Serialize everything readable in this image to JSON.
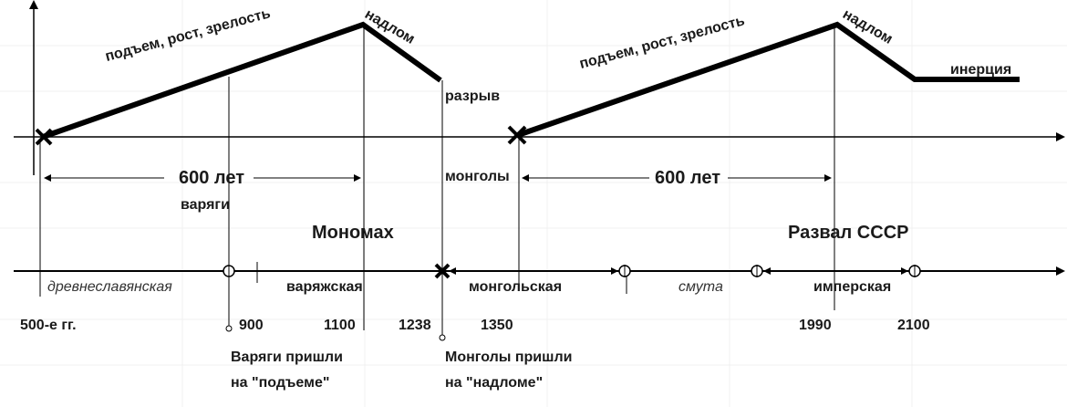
{
  "labels": {
    "phase1_rise": "подъем, рост, зрелость",
    "phase1_break": "надлом",
    "rupture": "разрыв",
    "phase2_rise": "подъем, рост, зрелость",
    "phase2_break": "надлом",
    "inertia": "инерция",
    "span1": "600 лет",
    "span2": "600 лет",
    "varangians": "варяги",
    "mongols": "монголы",
    "monomakh": "Мономах",
    "ussr_collapse": "Развал СССР"
  },
  "periods": {
    "ancient_slavic": "древнеславянская",
    "varangian": "варяжская",
    "mongol": "монгольская",
    "troubles": "смута",
    "imperial": "имперская"
  },
  "years": {
    "y500": "500-е гг.",
    "y900": "900",
    "y1100": "1100",
    "y1238": "1238",
    "y1350": "1350",
    "y1990": "1990",
    "y2100": "2100"
  },
  "notes": {
    "varangians_line1": "Варяги пришли",
    "varangians_line2": "на \"подъеме\"",
    "mongols_line1": "Монголы пришли",
    "mongols_line2": "на \"надломе\""
  }
}
